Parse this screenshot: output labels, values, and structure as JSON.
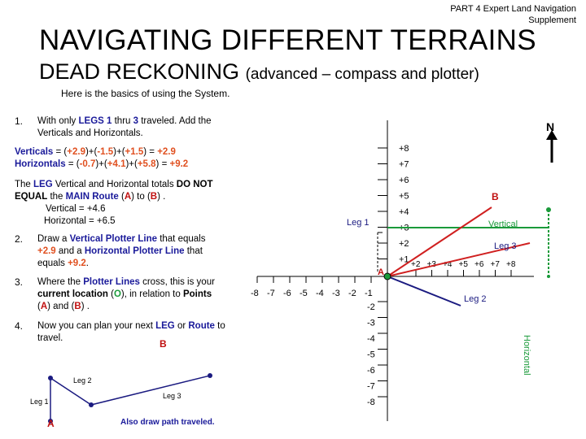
{
  "header": {
    "line1": "PART 4 Expert Land Navigation",
    "line2": "Supplement"
  },
  "title": "NAVIGATING DIFFERENT TERRAINS",
  "subtitle": {
    "main": "DEAD RECKONING",
    "paren": "(advanced – compass and plotter)"
  },
  "intro": "Here is the basics of using the System.",
  "steps": {
    "s1": {
      "num": "1.",
      "a": "With only ",
      "b": "LEGS 1",
      "c": " thru ",
      "d": "3",
      "e": " traveled.  Add the",
      "f": "Verticals and Horizontals."
    },
    "verticals": {
      "label": "Verticals",
      "eq": " = (",
      "v1": "+2.9",
      "mid1": ")+(",
      "v2": "-1.5",
      "mid2": ")+(",
      "v3": "+1.5",
      "end": ") = ",
      "total": "+2.9"
    },
    "horizontals": {
      "label": "Horizontals",
      "eq": " = (",
      "v1": "-0.7",
      "mid1": ")+(",
      "v2": "+4.1",
      "mid2": ")+(",
      "v3": "+5.8",
      "end": ") = ",
      "total": "+9.2"
    },
    "totals": {
      "a": "The ",
      "leg": "LEG",
      "b": " Vertical and Horizontal totals ",
      "c": "DO NOT",
      "d": "EQUAL",
      "e": " the ",
      "route": "MAIN Route",
      "f": " (",
      "pa": "A",
      "g": ") to (",
      "pb": "B",
      "h": ") .",
      "vert": "Vertical = +4.6",
      "horiz": "Horizontal = +6.5"
    },
    "s2": {
      "num": "2.",
      "a": "Draw a ",
      "b": "Vertical Plotter Line",
      "c": " that equals",
      "d": "+2.9",
      "e": " and a ",
      "f": "Horizontal Plotter Line",
      "g": " that",
      "h": "equals ",
      "i": "+9.2",
      "j": "."
    },
    "s3": {
      "num": "3.",
      "a": "Where the ",
      "b": "Plotter Lines",
      "c": " cross, this is your",
      "d": "current location",
      "e": " (",
      "f": "O",
      "g": "), in relation to ",
      "h": "Points",
      "i": "(",
      "pa": "A",
      "j": ") and (",
      "pb": "B",
      "k": ") ."
    },
    "s4": {
      "num": "4.",
      "a": "Now you can plan your next ",
      "b": "LEG",
      "c": " or ",
      "d": "Route",
      "e": " to",
      "f": "travel."
    }
  },
  "small_diagram": {
    "point_b": "B",
    "point_a": "A",
    "leg1": "Leg 1",
    "leg2": "Leg 2",
    "leg3": "Leg 3",
    "caption": "Also draw path traveled."
  },
  "plot": {
    "north": "N",
    "y_ticks_pos": [
      "+8",
      "+7",
      "+6",
      "+5",
      "+4",
      "+3",
      "+2",
      "+1"
    ],
    "y_ticks_neg": [
      "-2",
      "-3",
      "-4",
      "-5",
      "-6",
      "-7",
      "-8"
    ],
    "x_ticks_neg": [
      "-8",
      "-7",
      "-6",
      "-5",
      "-4",
      "-3",
      "-2",
      "-1"
    ],
    "x_ticks_pos": [
      "+2",
      "+3",
      "+4",
      "+5",
      "+6",
      "+7",
      "+8"
    ],
    "point_a": "A",
    "point_b": "B",
    "leg1": "Leg 1",
    "leg2": "Leg 2",
    "leg3": "Leg 3",
    "vertical_label": "Vertical",
    "horizontal_label": "Horizontal"
  },
  "colors": {
    "blue": "#1a1a9a",
    "orange": "#e05020",
    "green": "#1a9a3a",
    "red": "#c01010",
    "navy": "#1a1a80"
  }
}
